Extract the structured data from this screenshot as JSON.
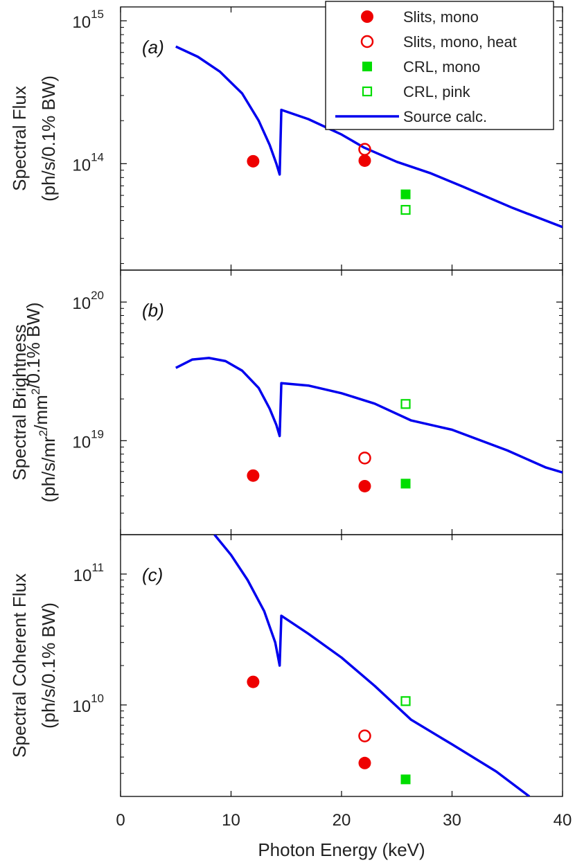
{
  "colors": {
    "source": "#0000ee",
    "slits": "#ee0000",
    "crl": "#00dd00",
    "axis": "#000000"
  },
  "xaxis": {
    "label": "Photon Energy (keV)",
    "range": [
      0,
      40
    ],
    "ticks": [
      0,
      10,
      20,
      30,
      40
    ]
  },
  "legend": {
    "entries": [
      {
        "label": "Slits, mono",
        "marker": "filled-circle"
      },
      {
        "label": "Slits, mono, heat",
        "marker": "open-circle"
      },
      {
        "label": "CRL, mono",
        "marker": "filled-square"
      },
      {
        "label": "CRL, pink",
        "marker": "open-square"
      },
      {
        "label": "Source calc.",
        "marker": "line"
      }
    ]
  },
  "chart_data": [
    {
      "type": "scatter",
      "panel_label": "(a)",
      "ylabel": [
        "Spectral Flux",
        "(ph/s/0.1% BW)"
      ],
      "yscale": "log",
      "ylim": [
        18000000000000.0,
        1250000000000000.0
      ],
      "yticks": [
        {
          "mantissa": "10",
          "exponent": "14",
          "value": 100000000000000.0
        },
        {
          "mantissa": "10",
          "exponent": "15",
          "value": 1000000000000000.0
        }
      ],
      "series": [
        {
          "name": "Slits, mono",
          "points": [
            [
              12.0,
              104000000000000.0
            ],
            [
              22.1,
              105000000000000.0
            ]
          ]
        },
        {
          "name": "Slits, mono, heat",
          "points": [
            [
              22.1,
              126000000000000.0
            ]
          ]
        },
        {
          "name": "CRL, mono",
          "points": [
            [
              25.8,
              61000000000000.0
            ]
          ]
        },
        {
          "name": "CRL, pink",
          "points": [
            [
              25.8,
              47500000000000.0
            ]
          ]
        },
        {
          "name": "Source calc.",
          "points": [
            [
              5,
              660000000000000.0
            ],
            [
              7,
              560000000000000.0
            ],
            [
              9,
              440000000000000.0
            ],
            [
              11,
              310000000000000.0
            ],
            [
              12.5,
              200000000000000.0
            ],
            [
              13.5,
              135000000000000.0
            ],
            [
              14.1,
              100000000000000.0
            ],
            [
              14.4,
              84000000000000.0
            ],
            [
              14.55,
              238000000000000.0
            ],
            [
              17,
              205000000000000.0
            ],
            [
              20,
              160000000000000.0
            ],
            [
              22,
              130000000000000.0
            ],
            [
              25,
              103000000000000.0
            ],
            [
              28,
              86000000000000.0
            ],
            [
              31,
              69000000000000.0
            ],
            [
              35.5,
              49000000000000.0
            ],
            [
              40,
              36000000000000.0
            ]
          ]
        }
      ]
    },
    {
      "type": "scatter",
      "panel_label": "(b)",
      "ylabel": [
        "Spectral Brightness",
        "(ph/s/mr2/mm2/0.1% BW)"
      ],
      "yscale": "log",
      "ylim": [
        2.1e+18,
        1.7e+20
      ],
      "yticks": [
        {
          "mantissa": "10",
          "exponent": "19",
          "value": 1e+19
        },
        {
          "mantissa": "10",
          "exponent": "20",
          "value": 1e+20
        }
      ],
      "series": [
        {
          "name": "Slits, mono",
          "points": [
            [
              12.0,
              5.6e+18
            ],
            [
              22.1,
              4.7e+18
            ]
          ]
        },
        {
          "name": "Slits, mono, heat",
          "points": [
            [
              22.1,
              7.5e+18
            ]
          ]
        },
        {
          "name": "CRL, mono",
          "points": [
            [
              25.8,
              4.9e+18
            ]
          ]
        },
        {
          "name": "CRL, pink",
          "points": [
            [
              25.8,
              1.84e+19
            ]
          ]
        },
        {
          "name": "Source calc.",
          "points": [
            [
              5,
              3.35e+19
            ],
            [
              6.5,
              3.85e+19
            ],
            [
              8,
              3.95e+19
            ],
            [
              9.5,
              3.75e+19
            ],
            [
              11,
              3.2e+19
            ],
            [
              12.5,
              2.4e+19
            ],
            [
              13.5,
              1.7e+19
            ],
            [
              14.1,
              1.3e+19
            ],
            [
              14.4,
              1.08e+19
            ],
            [
              14.55,
              2.6e+19
            ],
            [
              17,
              2.5e+19
            ],
            [
              20,
              2.2e+19
            ],
            [
              23,
              1.85e+19
            ],
            [
              26.3,
              1.4e+19
            ],
            [
              30,
              1.2e+19
            ],
            [
              35,
              8.5e+18
            ],
            [
              38.5,
              6.4e+18
            ],
            [
              40,
              5.9e+18
            ]
          ]
        }
      ]
    },
    {
      "type": "scatter",
      "panel_label": "(c)",
      "ylabel": [
        "Spectral Coherent Flux",
        "(ph/s/0.1% BW)"
      ],
      "yscale": "log",
      "ylim": [
        2000000000.0,
        200000000000.0
      ],
      "yticks": [
        {
          "mantissa": "10",
          "exponent": "10",
          "value": 10000000000.0
        },
        {
          "mantissa": "10",
          "exponent": "11",
          "value": 100000000000.0
        }
      ],
      "series": [
        {
          "name": "Slits, mono",
          "points": [
            [
              12.0,
              15000000000.0
            ],
            [
              22.1,
              3600000000.0
            ]
          ]
        },
        {
          "name": "Slits, mono, heat",
          "points": [
            [
              22.1,
              5800000000.0
            ]
          ]
        },
        {
          "name": "CRL, mono",
          "points": [
            [
              25.8,
              2700000000.0
            ]
          ]
        },
        {
          "name": "CRL, pink",
          "points": [
            [
              25.8,
              10700000000.0
            ]
          ]
        },
        {
          "name": "Source calc.",
          "points": [
            [
              8.5,
              200000000000.0
            ],
            [
              10,
              140000000000.0
            ],
            [
              11.5,
              90000000000.0
            ],
            [
              13,
              52000000000.0
            ],
            [
              14,
              30000000000.0
            ],
            [
              14.4,
              20000000000.0
            ],
            [
              14.55,
              48000000000.0
            ],
            [
              17,
              35000000000.0
            ],
            [
              20,
              23000000000.0
            ],
            [
              23,
              14000000000.0
            ],
            [
              26.3,
              7700000000.0
            ],
            [
              30,
              5000000000.0
            ],
            [
              34,
              3100000000.0
            ],
            [
              37,
              2000000000.0
            ]
          ]
        }
      ]
    }
  ]
}
